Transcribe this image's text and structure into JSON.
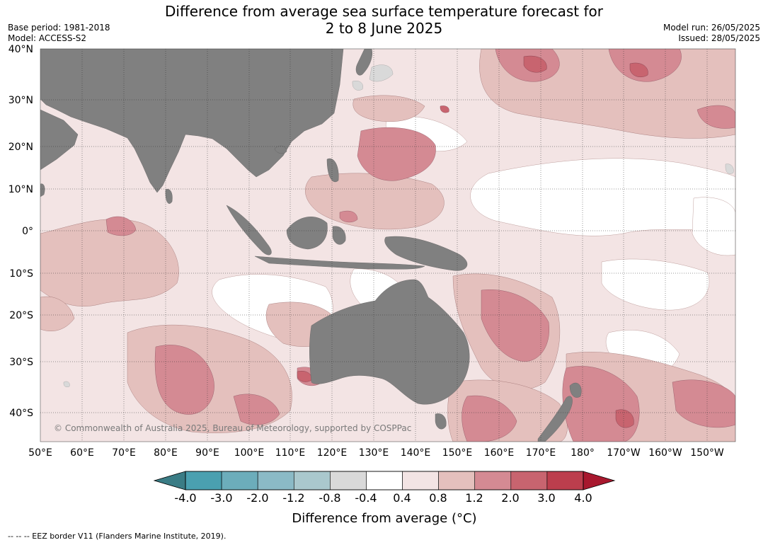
{
  "header": {
    "title_line1": "Difference from average sea surface temperature forecast for",
    "title_line2": "2 to 8 June 2025",
    "base_period": "Base period: 1981-2018",
    "model": "Model: ACCESS-S2",
    "model_run": "Model run: 26/05/2025",
    "issued": "Issued: 28/05/2025"
  },
  "map": {
    "copyright": "© Commonwealth of Australia 2025, Bureau of Meteorology, supported by COSPPac",
    "lat_labels": [
      "40°N",
      "30°N",
      "20°N",
      "10°N",
      "0°",
      "10°S",
      "20°S",
      "30°S",
      "40°S"
    ],
    "lon_labels": [
      "50°E",
      "60°E",
      "70°E",
      "80°E",
      "90°E",
      "100°E",
      "110°E",
      "120°E",
      "130°E",
      "140°E",
      "150°E",
      "160°E",
      "170°E",
      "180°",
      "170°W",
      "160°W",
      "150°W"
    ],
    "land_color": "#808080"
  },
  "colorbar": {
    "tick_labels": [
      "-4.0",
      "-3.0",
      "-2.0",
      "-1.2",
      "-0.8",
      "-0.4",
      "0.4",
      "0.8",
      "1.2",
      "2.0",
      "3.0",
      "4.0"
    ],
    "under_color": "#3a7c85",
    "over_color": "#a8182e",
    "colors": [
      "#4aa0b0",
      "#6cadbb",
      "#8bbac6",
      "#aac8cd",
      "#d9d9d9",
      "#ffffff",
      "#f3e4e4",
      "#e4c0bd",
      "#d48a93",
      "#c8646f",
      "#bc3e4d"
    ],
    "label": "Difference from average (°C)"
  },
  "footnote": "--  --  -- EEZ border V11 (Flanders Marine Institute, 2019)."
}
